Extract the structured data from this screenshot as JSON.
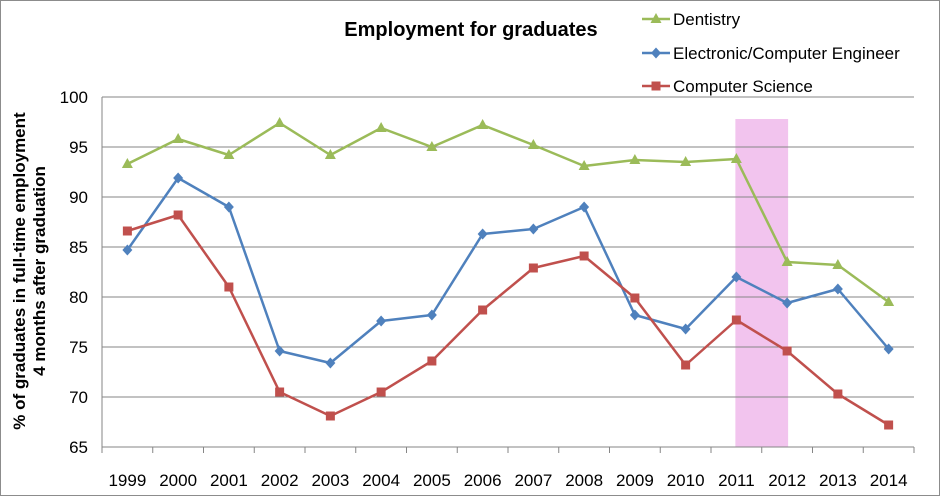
{
  "chart_data": {
    "type": "line",
    "title": "Employment for graduates",
    "ylabel_line1": "% of graduates in full-time  employment",
    "ylabel_line2": "4 months after graduation",
    "xlabel": "",
    "ylim": [
      65,
      100
    ],
    "yticks": [
      65,
      70,
      75,
      80,
      85,
      90,
      95,
      100
    ],
    "grid": true,
    "legend_position": "top-right",
    "categories": [
      "1999",
      "2000",
      "2001",
      "2002",
      "2003",
      "2004",
      "2005",
      "2006",
      "2007",
      "2008",
      "2009",
      "2010",
      "2011",
      "2012",
      "2013",
      "2014"
    ],
    "highlight": {
      "from": "2011",
      "to": "2012",
      "color": "#f2c4ee"
    },
    "series": [
      {
        "name": "Dentistry",
        "color": "#9bbb59",
        "marker": "triangle",
        "values": [
          93.3,
          95.8,
          94.2,
          97.4,
          94.2,
          96.9,
          95.0,
          97.2,
          95.2,
          93.1,
          93.7,
          93.5,
          93.8,
          83.5,
          83.2,
          79.5
        ]
      },
      {
        "name": "Electronic/Computer  Engineer",
        "color": "#4f81bd",
        "marker": "diamond",
        "values": [
          84.7,
          91.9,
          89.0,
          74.6,
          73.4,
          77.6,
          78.2,
          86.3,
          86.8,
          89.0,
          78.2,
          76.8,
          82.0,
          79.4,
          80.8,
          74.8
        ]
      },
      {
        "name": "Computer Science",
        "color": "#c0504d",
        "marker": "square",
        "values": [
          86.6,
          88.2,
          81.0,
          70.5,
          68.1,
          70.5,
          73.6,
          78.7,
          82.9,
          84.1,
          79.9,
          73.2,
          77.7,
          74.6,
          70.3,
          67.2
        ]
      }
    ]
  }
}
